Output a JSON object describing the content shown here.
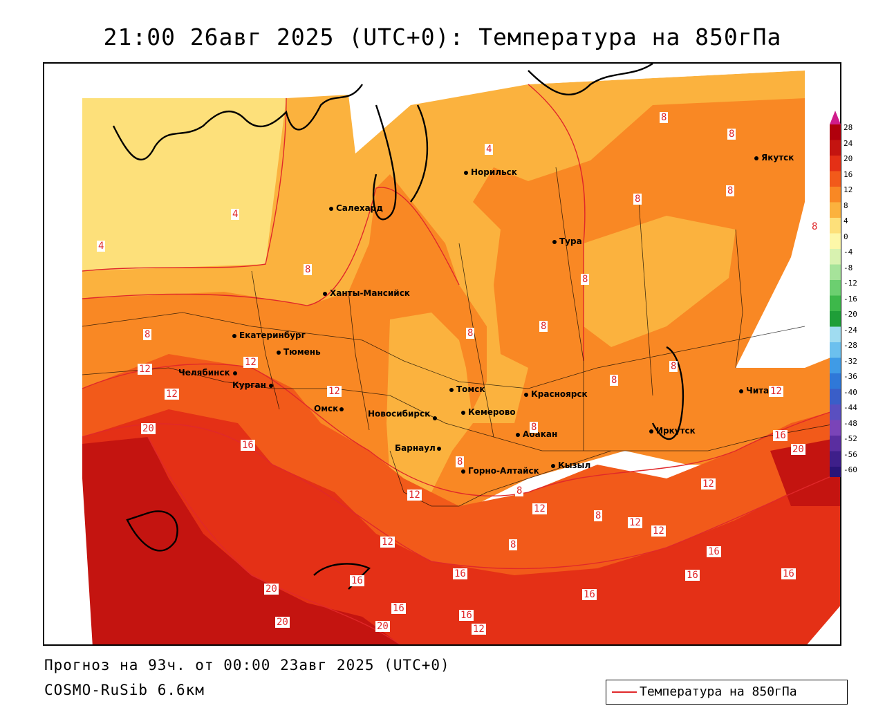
{
  "title": "21:00 26авг 2025 (UTC+0): Температура на 850гПа",
  "forecast_line": "Прогноз на 93ч. от 00:00 23авг 2025 (UTC+0)",
  "model_line": "COSMO-RuSib 6.6км",
  "key_label": "Температура на 850гПа",
  "colors": {
    "contour_line": "#e0282a",
    "t_0_4": "#fde07a",
    "t_4_8": "#fbb23e",
    "t_8_12": "#f98824",
    "t_12_16": "#f25a1a",
    "t_16_20": "#e43016",
    "t_20_24": "#c41410"
  },
  "cities": [
    {
      "name": "Салехард"
    },
    {
      "name": "Норильск"
    },
    {
      "name": "Якутск"
    },
    {
      "name": "Тура"
    },
    {
      "name": "Ханты-Мансийск"
    },
    {
      "name": "Екатеринбург"
    },
    {
      "name": "Тюмень"
    },
    {
      "name": "Челябинск"
    },
    {
      "name": "Курган"
    },
    {
      "name": "Омск"
    },
    {
      "name": "Новосибирск"
    },
    {
      "name": "Томск"
    },
    {
      "name": "Кемерово"
    },
    {
      "name": "Красноярск"
    },
    {
      "name": "Барнаул"
    },
    {
      "name": "Абакан"
    },
    {
      "name": "Горно-Алтайск"
    },
    {
      "name": "Кызыл"
    },
    {
      "name": "Иркутск"
    },
    {
      "name": "Чита"
    }
  ],
  "contour_labels": [
    "4",
    "4",
    "4",
    "8",
    "8",
    "8",
    "8",
    "8",
    "8",
    "8",
    "8",
    "8",
    "8",
    "8",
    "8",
    "12",
    "12",
    "12",
    "12",
    "12",
    "12",
    "12",
    "12",
    "12",
    "16",
    "16",
    "16",
    "16",
    "16",
    "16",
    "16",
    "16",
    "16",
    "20",
    "20",
    "20",
    "20",
    "20",
    "8",
    "8",
    "8",
    "8",
    "12",
    "12",
    "16",
    "12",
    "8"
  ],
  "legend": {
    "ticks": [
      "28",
      "24",
      "20",
      "16",
      "12",
      "8",
      "4",
      "0",
      "-4",
      "-8",
      "-12",
      "-16",
      "-20",
      "-24",
      "-28",
      "-32",
      "-36",
      "-40",
      "-44",
      "-48",
      "-52",
      "-56",
      "-60"
    ],
    "colors": [
      "#b0000c",
      "#c41410",
      "#e43016",
      "#f25a1a",
      "#f98824",
      "#fbb23e",
      "#fde07a",
      "#fdf7a8",
      "#d8f2b0",
      "#a6e39a",
      "#6ccf70",
      "#3db84a",
      "#1f9e38",
      "#a0dcf0",
      "#6cc0ee",
      "#3f9be6",
      "#2f78d8",
      "#3a5ec8",
      "#5a4fc0",
      "#7a44b8",
      "#5a2ea0",
      "#3e1f8a",
      "#2a1478"
    ]
  }
}
